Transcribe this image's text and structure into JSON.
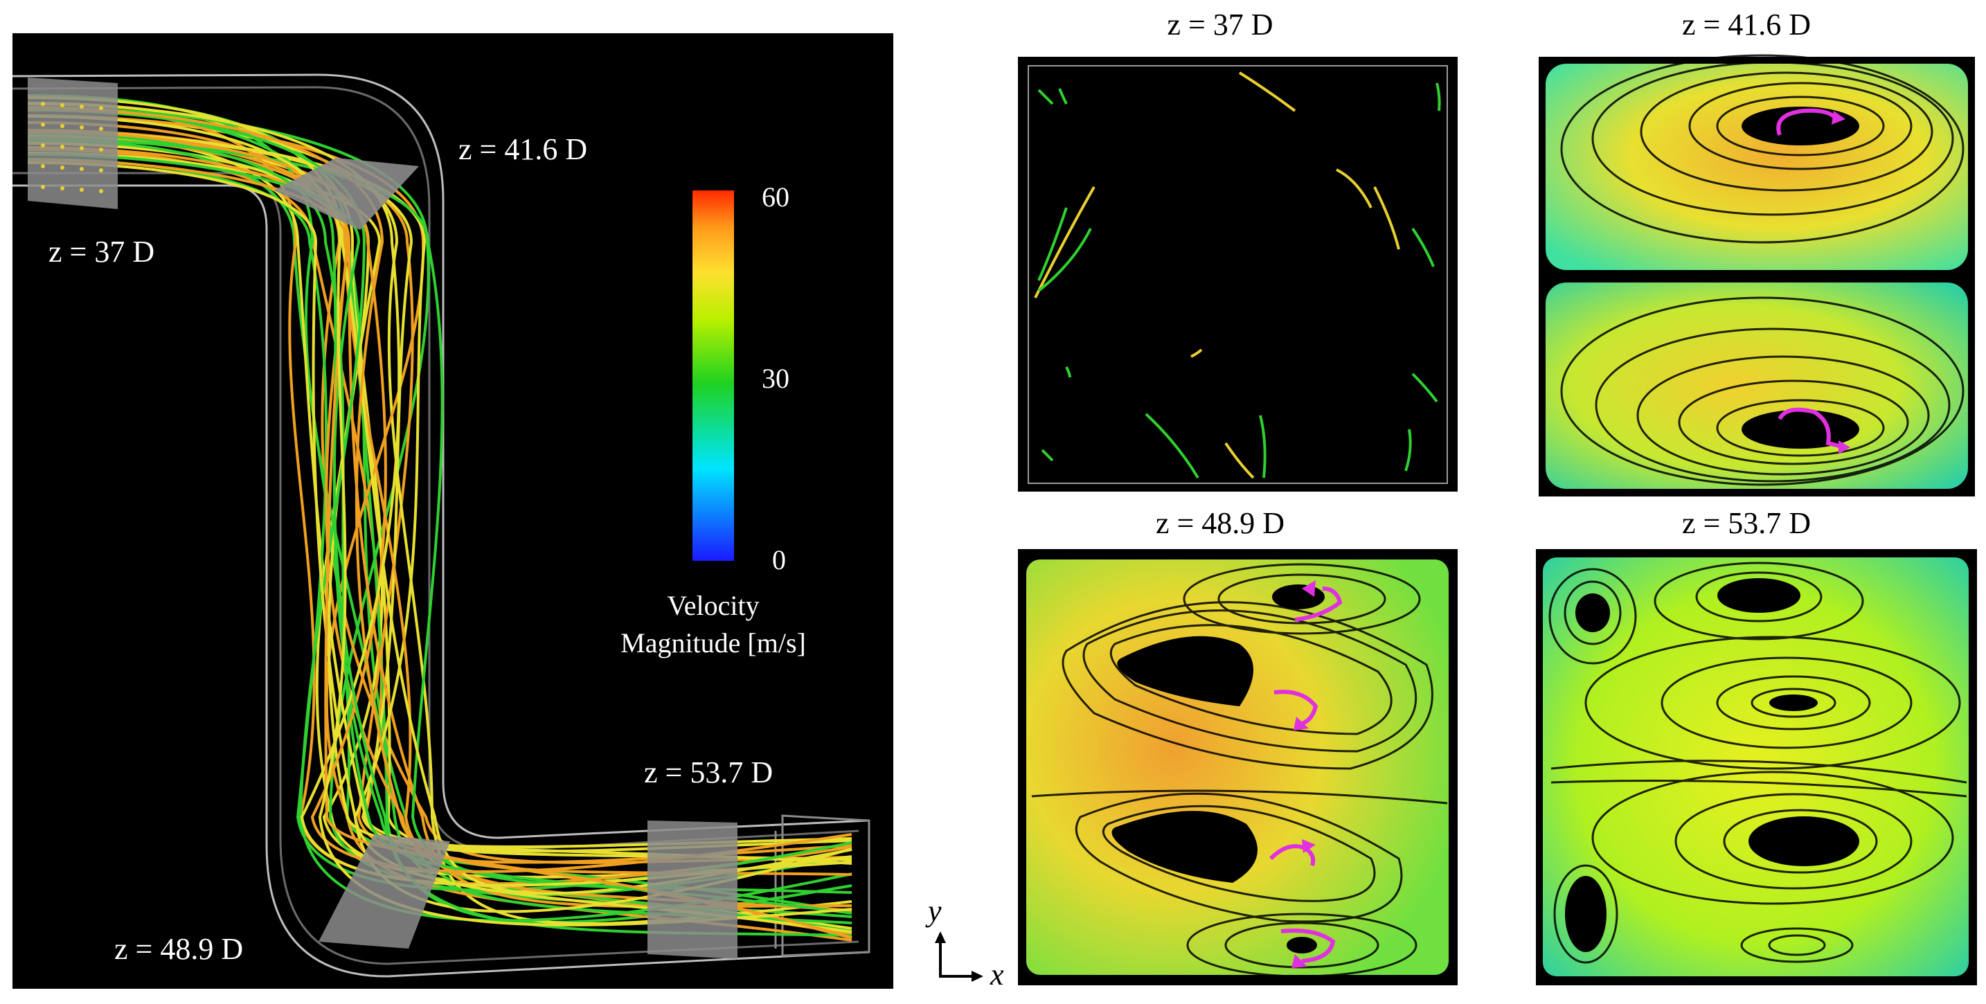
{
  "figure": {
    "left_panel": {
      "plane_labels": [
        {
          "id": "z37",
          "text": "z = 37 D"
        },
        {
          "id": "z416",
          "text": "z = 41.6 D"
        },
        {
          "id": "z489",
          "text": "z = 48.9 D"
        },
        {
          "id": "z537",
          "text": "z = 53.7 D"
        }
      ],
      "colorbar": {
        "max_label": "60",
        "mid_label": "30",
        "min_label": "0",
        "title_line1": "Velocity",
        "title_line2": "Magnitude [m/s]",
        "colors": [
          "#1a1aff",
          "#00e5ff",
          "#1fd21f",
          "#b8f000",
          "#ffe030",
          "#ff9a1a",
          "#ff2a00"
        ]
      }
    },
    "cross_sections": [
      {
        "id": "cs-37",
        "title": "z = 37 D"
      },
      {
        "id": "cs-416",
        "title": "z = 41.6 D"
      },
      {
        "id": "cs-489",
        "title": "z = 48.9 D"
      },
      {
        "id": "cs-537",
        "title": "z = 53.7 D"
      }
    ],
    "axes": {
      "y_label": "y",
      "x_label": "x"
    },
    "colors": {
      "streamline_yellow": "#e8e030",
      "streamline_green": "#30d030",
      "streamline_orange": "#f0a020",
      "arrow_magenta": "#e030e0",
      "pipe_outline": "#bdbdbd",
      "plane_gray": "#8c8c8c"
    }
  }
}
